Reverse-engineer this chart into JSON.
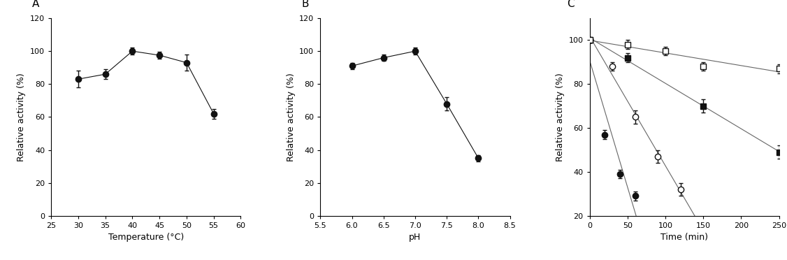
{
  "panel_A": {
    "label": "A",
    "x": [
      30,
      35,
      40,
      45,
      50,
      55
    ],
    "y": [
      83,
      86,
      100,
      97.5,
      93,
      62
    ],
    "yerr": [
      5,
      3,
      2,
      2,
      5,
      3
    ],
    "xlabel": "Temperature (°C)",
    "ylabel": "Relative activity (%)",
    "xlim": [
      25,
      60
    ],
    "ylim": [
      0,
      120
    ],
    "xticks": [
      25,
      30,
      35,
      40,
      45,
      50,
      55,
      60
    ],
    "yticks": [
      0,
      20,
      40,
      60,
      80,
      100,
      120
    ]
  },
  "panel_B": {
    "label": "B",
    "x": [
      6.0,
      6.5,
      7.0,
      7.5,
      8.0
    ],
    "y": [
      91,
      96,
      100,
      68,
      35
    ],
    "yerr": [
      2,
      2,
      2,
      4,
      2
    ],
    "xlabel": "pH",
    "ylabel": "Relative activity (%)",
    "xlim": [
      5.5,
      8.5
    ],
    "ylim": [
      0,
      120
    ],
    "xticks": [
      5.5,
      6.0,
      6.5,
      7.0,
      7.5,
      8.0,
      8.5
    ],
    "yticks": [
      0,
      20,
      40,
      60,
      80,
      100,
      120
    ]
  },
  "panel_C": {
    "label": "C",
    "series": [
      {
        "x": [
          0,
          20,
          40,
          60
        ],
        "y": [
          100,
          57,
          39,
          29
        ],
        "yerr": [
          1,
          2,
          2,
          2
        ],
        "marker": "o",
        "filled": true,
        "fit_xlim": [
          0,
          80
        ]
      },
      {
        "x": [
          0,
          30,
          60,
          90,
          120
        ],
        "y": [
          100,
          88,
          65,
          47,
          32
        ],
        "yerr": [
          1,
          2,
          3,
          3,
          3
        ],
        "marker": "o",
        "filled": false,
        "fit_xlim": [
          0,
          165
        ]
      },
      {
        "x": [
          0,
          50,
          150,
          250
        ],
        "y": [
          100,
          92,
          70,
          49
        ],
        "yerr": [
          1,
          2,
          3,
          3
        ],
        "marker": "s",
        "filled": true,
        "fit_xlim": [
          0,
          250
        ]
      },
      {
        "x": [
          0,
          50,
          100,
          150,
          250
        ],
        "y": [
          100,
          98,
          95,
          88,
          87
        ],
        "yerr": [
          1,
          2,
          2,
          2,
          2
        ],
        "marker": "s",
        "filled": false,
        "fit_xlim": [
          0,
          250
        ]
      }
    ],
    "xlabel": "Time (min)",
    "ylabel": "Relative activity (%)",
    "xlim": [
      0,
      250
    ],
    "ylim": [
      20,
      110
    ],
    "xticks": [
      0,
      50,
      100,
      150,
      200,
      250
    ],
    "yticks": [
      20,
      40,
      60,
      80,
      100
    ]
  },
  "line_color": "#666666",
  "marker_color_filled": "#111111",
  "marker_size": 6,
  "elinewidth": 1.0,
  "capsize": 2.5,
  "font_size_label": 9,
  "font_size_tick": 8,
  "font_size_panel": 11
}
